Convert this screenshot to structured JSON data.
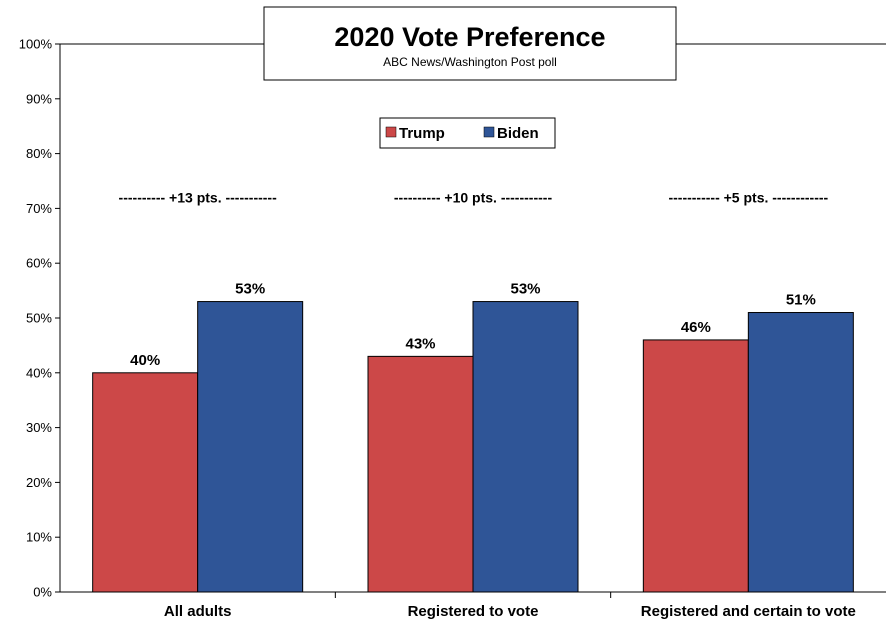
{
  "chart_data": {
    "type": "bar",
    "title": "2020 Vote Preference",
    "subtitle": "ABC News/Washington Post poll",
    "categories": [
      "All adults",
      "Registered to vote",
      "Registered and certain to vote"
    ],
    "series": [
      {
        "name": "Trump",
        "color": "#cc4848",
        "values": [
          40,
          43,
          46
        ]
      },
      {
        "name": "Biden",
        "color": "#2f5597",
        "values": [
          53,
          53,
          51
        ]
      }
    ],
    "value_labels": {
      "Trump": [
        "40%",
        "43%",
        "46%"
      ],
      "Biden": [
        "53%",
        "53%",
        "51%"
      ]
    },
    "lead_annotations": [
      "---------- +13 pts. -----------",
      "---------- +10 pts. -----------",
      "----------- +5 pts. ------------"
    ],
    "ylim": [
      0,
      100
    ],
    "yticks": [
      "0%",
      "10%",
      "20%",
      "30%",
      "40%",
      "50%",
      "60%",
      "70%",
      "80%",
      "90%",
      "100%"
    ],
    "xlabel": "",
    "ylabel": "",
    "legend_position": "top-center",
    "grid": false
  }
}
